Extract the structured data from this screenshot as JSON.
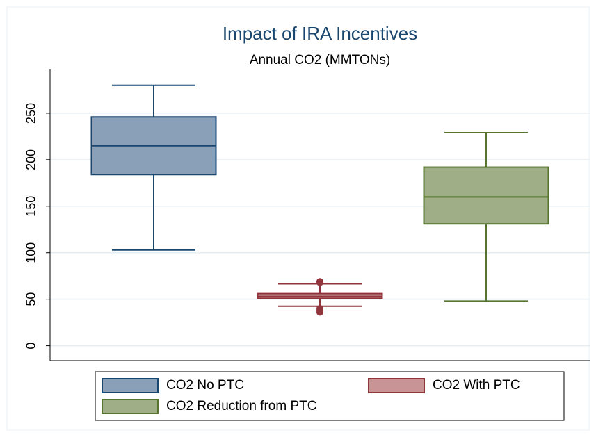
{
  "chart_data": {
    "type": "box",
    "title": "Impact of IRA Incentives",
    "subtitle": "Annual CO2 (MMTONs)",
    "ylim": [
      -16,
      297
    ],
    "yticks": [
      0,
      50,
      100,
      150,
      200,
      250
    ],
    "grid": true,
    "legend": "bottom",
    "series": [
      {
        "name": "CO2 No PTC",
        "color": "#8aa0b8",
        "stroke": "#1a476f",
        "min": 103,
        "q1": 184,
        "median": 215,
        "q3": 246,
        "max": 280,
        "outliers": []
      },
      {
        "name": "CO2 With PTC",
        "color": "#c99496",
        "stroke": "#90353b",
        "min": 42.5,
        "q1": 51,
        "median": 53,
        "q3": 56,
        "max": 66.5,
        "outliers": [
          69,
          68,
          40,
          38,
          36
        ]
      },
      {
        "name": "CO2 Reduction from PTC",
        "color": "#9fae86",
        "stroke": "#55752f",
        "min": 48,
        "q1": 131,
        "median": 160,
        "q3": 192,
        "max": 229,
        "outliers": []
      }
    ]
  }
}
